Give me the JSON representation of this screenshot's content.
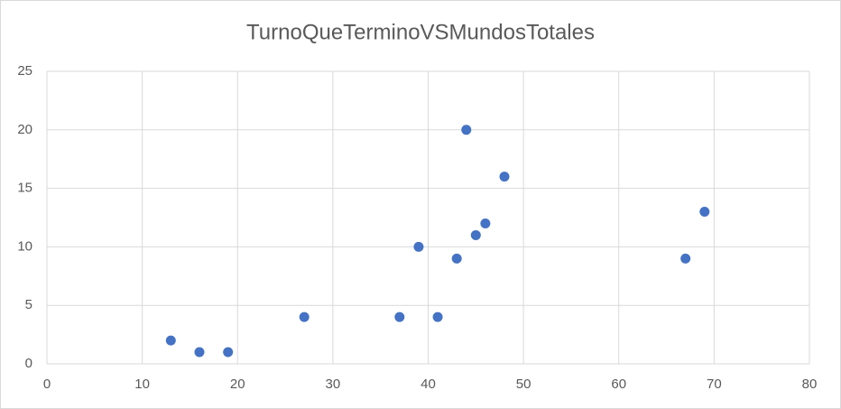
{
  "chart_data": {
    "type": "scatter",
    "title": "TurnoQueTerminoVSMundosTotales",
    "x": [
      13,
      16,
      19,
      27,
      37,
      39,
      41,
      43,
      44,
      45,
      46,
      48,
      67,
      69
    ],
    "values": [
      2,
      1,
      1,
      4,
      4,
      10,
      4,
      9,
      20,
      11,
      12,
      16,
      9,
      13
    ],
    "color": "#4472c4",
    "xlim": [
      0,
      80
    ],
    "xticks": [
      0,
      10,
      20,
      30,
      40,
      50,
      60,
      70,
      80
    ],
    "ylim": [
      0,
      25
    ],
    "yticks": [
      0,
      5,
      10,
      15,
      20,
      25
    ],
    "grid": true
  }
}
